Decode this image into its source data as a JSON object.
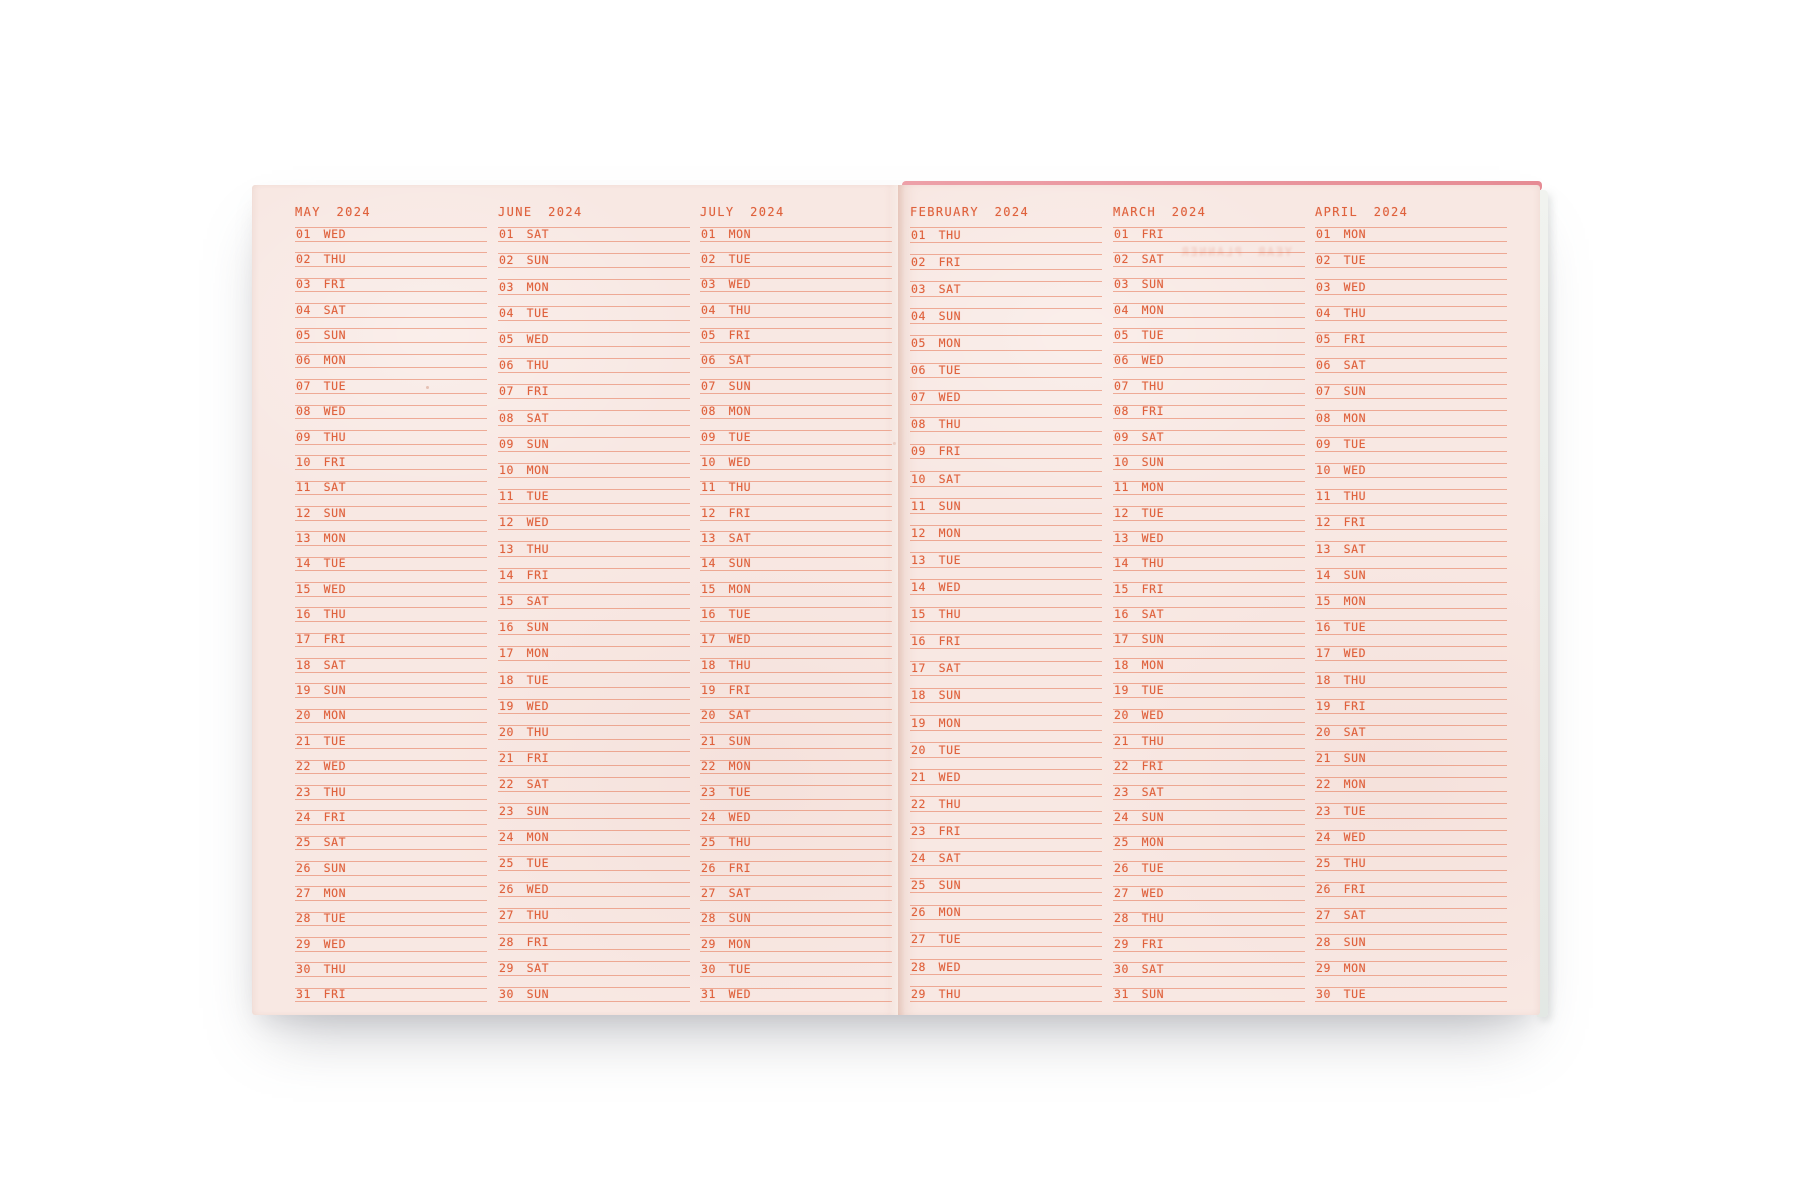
{
  "planner": {
    "left_page": {
      "months": [
        {
          "title": "MAY 2024",
          "days": [
            "01 WED",
            "02 THU",
            "03 FRI",
            "04 SAT",
            "05 SUN",
            "06 MON",
            "07 TUE",
            "08 WED",
            "09 THU",
            "10 FRI",
            "11 SAT",
            "12 SUN",
            "13 MON",
            "14 TUE",
            "15 WED",
            "16 THU",
            "17 FRI",
            "18 SAT",
            "19 SUN",
            "20 MON",
            "21 TUE",
            "22 WED",
            "23 THU",
            "24 FRI",
            "25 SAT",
            "26 SUN",
            "27 MON",
            "28 TUE",
            "29 WED",
            "30 THU",
            "31 FRI"
          ]
        },
        {
          "title": "JUNE 2024",
          "days": [
            "01 SAT",
            "02 SUN",
            "03 MON",
            "04 TUE",
            "05 WED",
            "06 THU",
            "07 FRI",
            "08 SAT",
            "09 SUN",
            "10 MON",
            "11 TUE",
            "12 WED",
            "13 THU",
            "14 FRI",
            "15 SAT",
            "16 SUN",
            "17 MON",
            "18 TUE",
            "19 WED",
            "20 THU",
            "21 FRI",
            "22 SAT",
            "23 SUN",
            "24 MON",
            "25 TUE",
            "26 WED",
            "27 THU",
            "28 FRI",
            "29 SAT",
            "30 SUN"
          ]
        },
        {
          "title": "JULY 2024",
          "days": [
            "01 MON",
            "02 TUE",
            "03 WED",
            "04 THU",
            "05 FRI",
            "06 SAT",
            "07 SUN",
            "08 MON",
            "09 TUE",
            "10 WED",
            "11 THU",
            "12 FRI",
            "13 SAT",
            "14 SUN",
            "15 MON",
            "16 TUE",
            "17 WED",
            "18 THU",
            "19 FRI",
            "20 SAT",
            "21 SUN",
            "22 MON",
            "23 TUE",
            "24 WED",
            "25 THU",
            "26 FRI",
            "27 SAT",
            "28 SUN",
            "29 MON",
            "30 TUE",
            "31 WED"
          ]
        }
      ]
    },
    "right_page": {
      "months": [
        {
          "title": "FEBRUARY 2024",
          "days": [
            "01 THU",
            "02 FRI",
            "03 SAT",
            "04 SUN",
            "05 MON",
            "06 TUE",
            "07 WED",
            "08 THU",
            "09 FRI",
            "10 SAT",
            "11 SUN",
            "12 MON",
            "13 TUE",
            "14 WED",
            "15 THU",
            "16 FRI",
            "17 SAT",
            "18 SUN",
            "19 MON",
            "20 TUE",
            "21 WED",
            "22 THU",
            "23 FRI",
            "24 SAT",
            "25 SUN",
            "26 MON",
            "27 TUE",
            "28 WED",
            "29 THU"
          ]
        },
        {
          "title": "MARCH 2024",
          "days": [
            "01 FRI",
            "02 SAT",
            "03 SUN",
            "04 MON",
            "05 TUE",
            "06 WED",
            "07 THU",
            "08 FRI",
            "09 SAT",
            "10 SUN",
            "11 MON",
            "12 TUE",
            "13 WED",
            "14 THU",
            "15 FRI",
            "16 SAT",
            "17 SUN",
            "18 MON",
            "19 TUE",
            "20 WED",
            "21 THU",
            "22 FRI",
            "23 SAT",
            "24 SUN",
            "25 MON",
            "26 TUE",
            "27 WED",
            "28 THU",
            "29 FRI",
            "30 SAT",
            "31 SUN"
          ]
        },
        {
          "title": "APRIL 2024",
          "days": [
            "01 MON",
            "02 TUE",
            "03 WED",
            "04 THU",
            "05 FRI",
            "06 SAT",
            "07 SUN",
            "08 MON",
            "09 TUE",
            "10 WED",
            "11 THU",
            "12 FRI",
            "13 SAT",
            "14 SUN",
            "15 MON",
            "16 TUE",
            "17 WED",
            "18 THU",
            "19 FRI",
            "20 SAT",
            "21 SUN",
            "22 MON",
            "23 TUE",
            "24 WED",
            "25 THU",
            "26 FRI",
            "27 SAT",
            "28 SUN",
            "29 MON",
            "30 TUE"
          ]
        }
      ]
    },
    "ghost_text": "YEAR PLANNER",
    "colors": {
      "paper": "#f8e8e3",
      "ink": "#df613c",
      "rule": "rgba(224,92,52,0.45)",
      "cover_edge": "#e9929c"
    }
  }
}
